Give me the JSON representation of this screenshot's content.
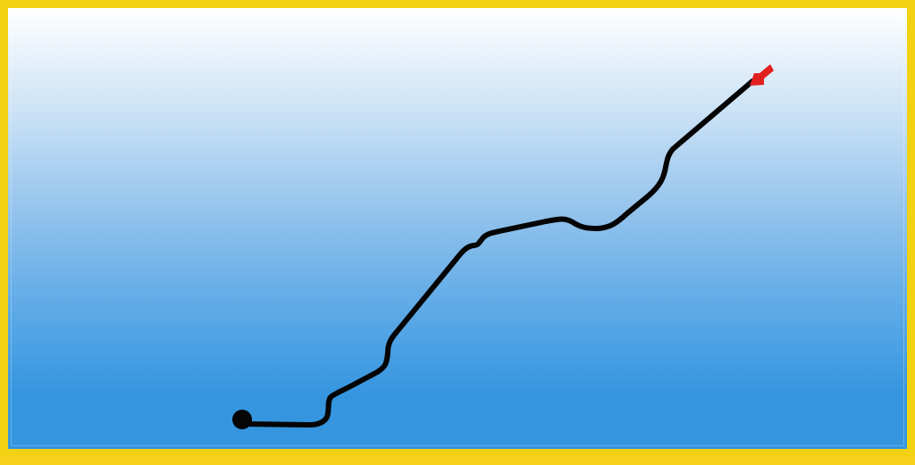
{
  "scene": {
    "border_color": "#f3d213",
    "background_top": "#ffffff",
    "background_bottom": "#3595df",
    "path_color": "#050505",
    "arrow_color": "#e22020",
    "start_marker": "start-dot",
    "end_marker": "red-arrow-icon"
  }
}
